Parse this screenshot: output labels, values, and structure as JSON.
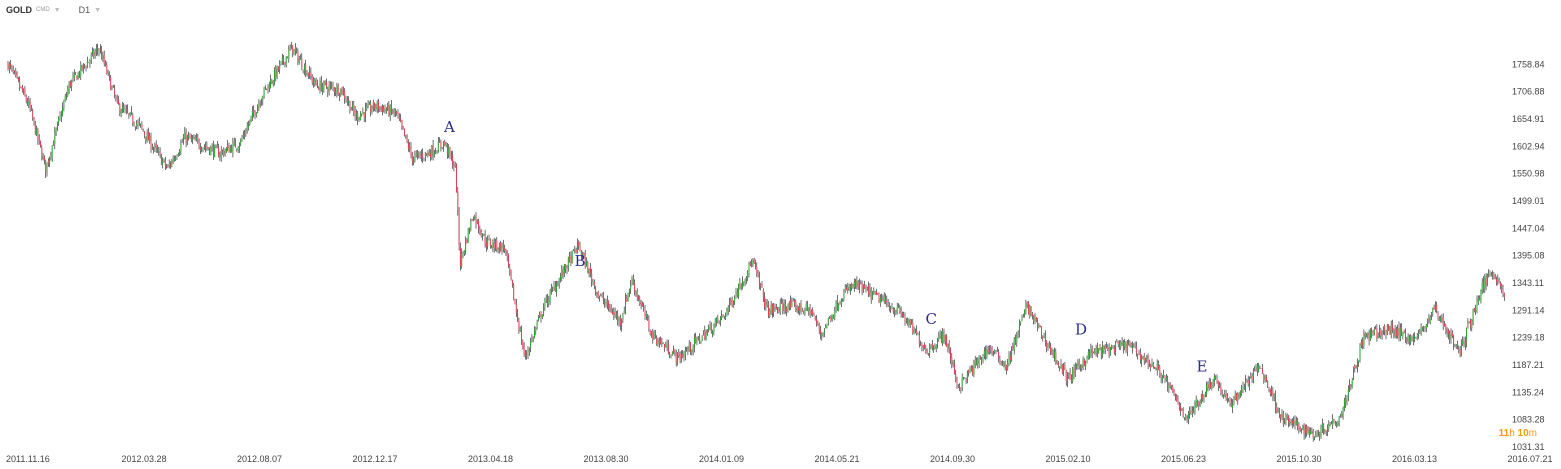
{
  "header": {
    "symbol": "GOLD",
    "source": "CMD",
    "timeframe": "D1"
  },
  "timer": {
    "hours": "11",
    "h_unit": "h",
    "minutes": "10",
    "m_unit": "m"
  },
  "colors": {
    "up": "#2ca02c",
    "down": "#e0405a",
    "wick": "#111111",
    "label": "#2b2e8a",
    "timer": "#f39c12"
  },
  "chart_data": {
    "type": "line",
    "title": "",
    "xlabel": "",
    "ylabel": "",
    "ylim": [
      1031.31,
      1810.81
    ],
    "y_ticks": [
      "1758.84",
      "1706.88",
      "1654.91",
      "1602.94",
      "1550.98",
      "1499.01",
      "1447.04",
      "1395.08",
      "1343.11",
      "1291.14",
      "1239.18",
      "1187.21",
      "1135.24",
      "1083.28",
      "1031.31"
    ],
    "x_ticks": [
      "2011.11.16",
      "2012.03.28",
      "2012.08.07",
      "2012.12.17",
      "2013.04.18",
      "2013.08.30",
      "2014.01.09",
      "2014.05.21",
      "2014.09.30",
      "2015.02.10",
      "2015.06.23",
      "2015.10.30",
      "2016.03.13",
      "2016.07.21"
    ],
    "grid": false,
    "series": [
      {
        "values": [
          [
            "2011-11-16",
            1760
          ],
          [
            "2011-12-10",
            1680
          ],
          [
            "2011-12-29",
            1560
          ],
          [
            "2012-01-25",
            1720
          ],
          [
            "2012-02-28",
            1790
          ],
          [
            "2012-03-20",
            1680
          ],
          [
            "2012-04-15",
            1640
          ],
          [
            "2012-05-16",
            1560
          ],
          [
            "2012-06-05",
            1620
          ],
          [
            "2012-07-15",
            1590
          ],
          [
            "2012-08-07",
            1610
          ],
          [
            "2012-09-01",
            1700
          ],
          [
            "2012-10-05",
            1790
          ],
          [
            "2012-11-01",
            1720
          ],
          [
            "2012-12-01",
            1710
          ],
          [
            "2012-12-17",
            1660
          ],
          [
            "2013-01-10",
            1680
          ],
          [
            "2013-02-01",
            1665
          ],
          [
            "2013-02-20",
            1580
          ],
          [
            "2013-03-10",
            1590
          ],
          [
            "2013-03-28",
            1610
          ],
          [
            "2013-04-10",
            1560
          ],
          [
            "2013-04-15",
            1380
          ],
          [
            "2013-04-30",
            1475
          ],
          [
            "2013-05-15",
            1420
          ],
          [
            "2013-06-05",
            1410
          ],
          [
            "2013-06-28",
            1200
          ],
          [
            "2013-07-20",
            1300
          ],
          [
            "2013-08-28",
            1415
          ],
          [
            "2013-09-20",
            1320
          ],
          [
            "2013-10-15",
            1270
          ],
          [
            "2013-10-28",
            1350
          ],
          [
            "2013-11-20",
            1245
          ],
          [
            "2013-12-20",
            1200
          ],
          [
            "2014-01-09",
            1230
          ],
          [
            "2014-02-10",
            1280
          ],
          [
            "2014-03-15",
            1385
          ],
          [
            "2014-04-01",
            1290
          ],
          [
            "2014-04-25",
            1300
          ],
          [
            "2014-05-21",
            1290
          ],
          [
            "2014-06-01",
            1245
          ],
          [
            "2014-06-25",
            1320
          ],
          [
            "2014-07-10",
            1340
          ],
          [
            "2014-08-10",
            1310
          ],
          [
            "2014-09-01",
            1285
          ],
          [
            "2014-09-30",
            1215
          ],
          [
            "2014-10-20",
            1245
          ],
          [
            "2014-11-05",
            1145
          ],
          [
            "2014-12-10",
            1220
          ],
          [
            "2014-12-30",
            1185
          ],
          [
            "2015-01-22",
            1300
          ],
          [
            "2015-02-10",
            1240
          ],
          [
            "2015-03-10",
            1160
          ],
          [
            "2015-04-05",
            1210
          ],
          [
            "2015-05-18",
            1225
          ],
          [
            "2015-06-23",
            1175
          ],
          [
            "2015-07-24",
            1085
          ],
          [
            "2015-08-24",
            1165
          ],
          [
            "2015-09-10",
            1110
          ],
          [
            "2015-10-15",
            1185
          ],
          [
            "2015-11-10",
            1085
          ],
          [
            "2015-12-17",
            1055
          ],
          [
            "2016-01-15",
            1090
          ],
          [
            "2016-02-11",
            1240
          ],
          [
            "2016-03-13",
            1255
          ],
          [
            "2016-04-10",
            1235
          ],
          [
            "2016-05-02",
            1295
          ],
          [
            "2016-05-30",
            1210
          ],
          [
            "2016-06-24",
            1330
          ],
          [
            "2016-07-06",
            1370
          ],
          [
            "2016-07-21",
            1320
          ]
        ]
      }
    ],
    "annotations": [
      {
        "text": "A",
        "x": "2013-04-03",
        "y": 1630
      },
      {
        "text": "B",
        "x": "2013-08-30",
        "y": 1375
      },
      {
        "text": "C",
        "x": "2014-10-05",
        "y": 1265
      },
      {
        "text": "D",
        "x": "2015-03-25",
        "y": 1245
      },
      {
        "text": "E",
        "x": "2015-08-10",
        "y": 1175
      }
    ]
  }
}
